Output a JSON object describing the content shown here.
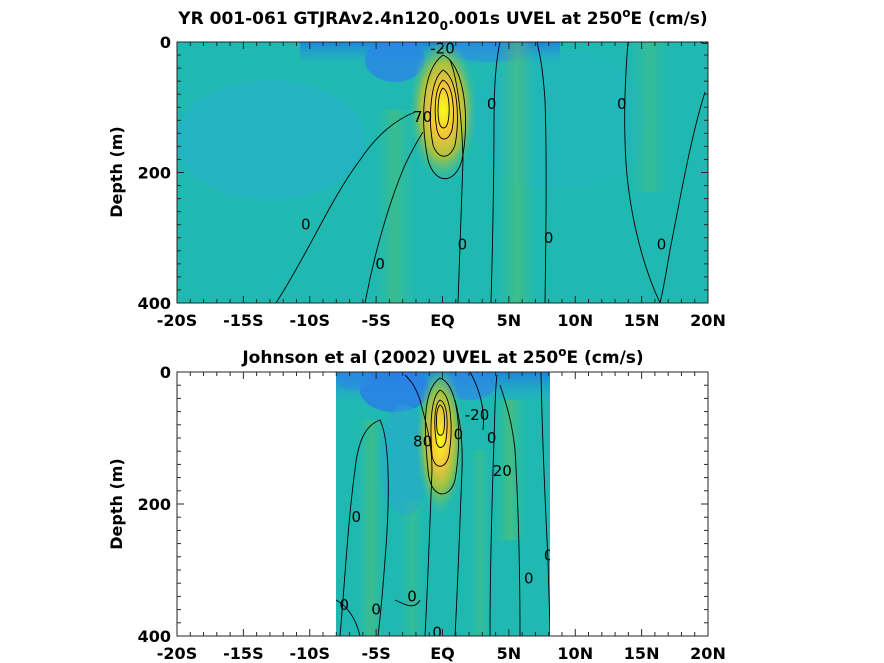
{
  "chart_data": [
    {
      "type": "heatmap",
      "title_main": "YR 001-061 GTJRAv2.4n120",
      "title_sub": "0",
      "title_rest": ".001s UVEL at 250",
      "title_sup": "o",
      "title_end": "E (cm/s)",
      "ylabel": "Depth (m)",
      "xlim": [
        -20,
        20
      ],
      "ylim": [
        0,
        400
      ],
      "y_reversed": true,
      "xticks": [
        {
          "v": -20,
          "label": "-20S"
        },
        {
          "v": -15,
          "label": "-15S"
        },
        {
          "v": -10,
          "label": "-10S"
        },
        {
          "v": -5,
          "label": "-5S"
        },
        {
          "v": 0,
          "label": "EQ"
        },
        {
          "v": 5,
          "label": "5N"
        },
        {
          "v": 10,
          "label": "10N"
        },
        {
          "v": 15,
          "label": "15N"
        },
        {
          "v": 20,
          "label": "20N"
        }
      ],
      "yticks": [
        {
          "v": 0,
          "label": "0"
        },
        {
          "v": 200,
          "label": "200"
        },
        {
          "v": 400,
          "label": "400"
        }
      ],
      "data_extent": [
        -20,
        20
      ],
      "core": {
        "lat": 0,
        "depth": 95,
        "peak": 100
      },
      "contour_labels": [
        {
          "lat": 0,
          "depth": 10,
          "text": "-20"
        },
        {
          "lat": 3.7,
          "depth": 95,
          "text": "0"
        },
        {
          "lat": 13.5,
          "depth": 95,
          "text": "0"
        },
        {
          "lat": -1.5,
          "depth": 115,
          "text": "70"
        },
        {
          "lat": -10.3,
          "depth": 280,
          "text": "0"
        },
        {
          "lat": 1.5,
          "depth": 310,
          "text": "0"
        },
        {
          "lat": 8,
          "depth": 300,
          "text": "0"
        },
        {
          "lat": 16.5,
          "depth": 310,
          "text": "0"
        },
        {
          "lat": -4.7,
          "depth": 340,
          "text": "0"
        }
      ]
    },
    {
      "type": "heatmap",
      "title_main": "Johnson et al (2002) UVEL at 250",
      "title_sup": "o",
      "title_end": "E (cm/s)",
      "ylabel": "Depth (m)",
      "xlim": [
        -20,
        20
      ],
      "ylim": [
        0,
        400
      ],
      "y_reversed": true,
      "xticks": [
        {
          "v": -20,
          "label": "-20S"
        },
        {
          "v": -15,
          "label": "-15S"
        },
        {
          "v": -10,
          "label": "-10S"
        },
        {
          "v": -5,
          "label": "-5S"
        },
        {
          "v": 0,
          "label": "EQ"
        },
        {
          "v": 5,
          "label": "5N"
        },
        {
          "v": 10,
          "label": "10N"
        },
        {
          "v": 15,
          "label": "15N"
        },
        {
          "v": 20,
          "label": "20N"
        }
      ],
      "yticks": [
        {
          "v": 0,
          "label": "0"
        },
        {
          "v": 200,
          "label": "200"
        },
        {
          "v": 400,
          "label": "400"
        }
      ],
      "data_extent": [
        -8,
        8
      ],
      "core": {
        "lat": -0.2,
        "depth": 70,
        "peak": 110
      },
      "contour_labels": [
        {
          "lat": 2.6,
          "depth": 65,
          "text": "-20"
        },
        {
          "lat": 1.2,
          "depth": 95,
          "text": "0"
        },
        {
          "lat": 3.7,
          "depth": 100,
          "text": "0"
        },
        {
          "lat": -1.5,
          "depth": 105,
          "text": "80"
        },
        {
          "lat": 4.5,
          "depth": 150,
          "text": "20"
        },
        {
          "lat": -6.5,
          "depth": 220,
          "text": "0"
        },
        {
          "lat": 8,
          "depth": 278,
          "text": "0"
        },
        {
          "lat": 6.5,
          "depth": 313,
          "text": "0"
        },
        {
          "lat": -2.3,
          "depth": 340,
          "text": "0"
        },
        {
          "lat": -7.4,
          "depth": 353,
          "text": "0"
        },
        {
          "lat": -5,
          "depth": 360,
          "text": "0"
        },
        {
          "lat": -0.4,
          "depth": 395,
          "text": "0"
        }
      ]
    }
  ]
}
